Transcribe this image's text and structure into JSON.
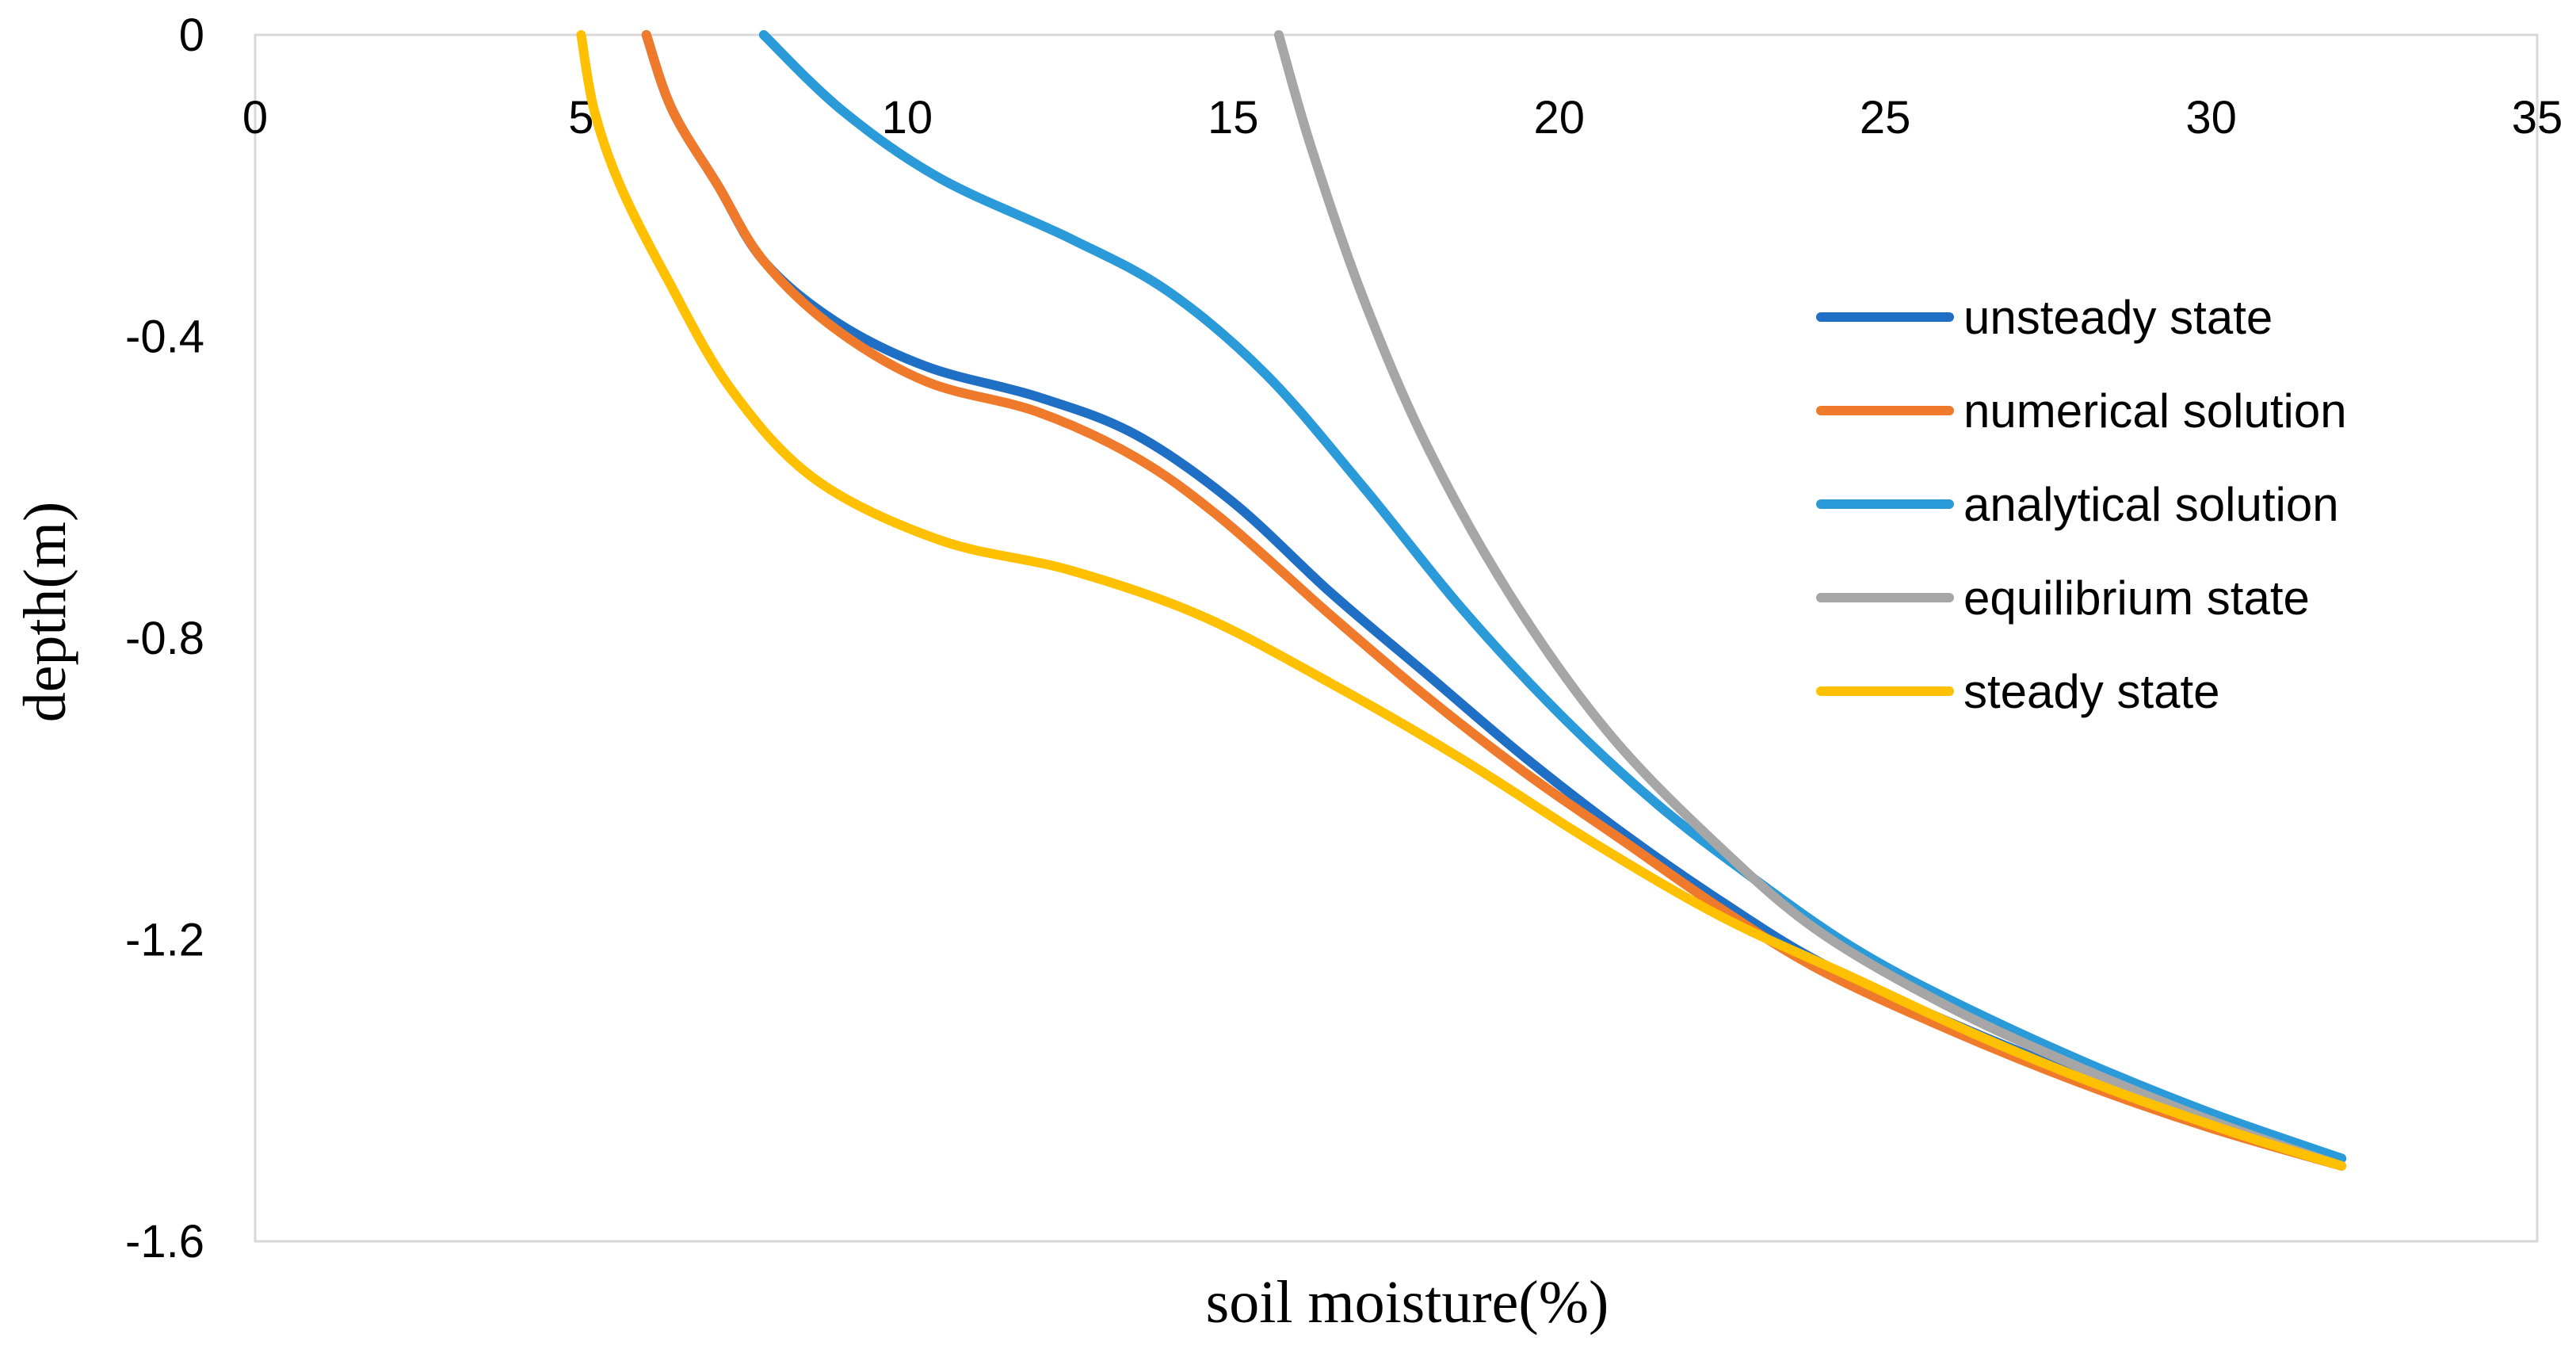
{
  "chart_data": {
    "type": "line",
    "xlabel": "soil moisture(%)",
    "ylabel": "depth(m)",
    "xlim": [
      0,
      35
    ],
    "ylim": [
      -1.6,
      0
    ],
    "x_ticks": [
      "0",
      "5",
      "10",
      "15",
      "20",
      "25",
      "30",
      "35"
    ],
    "x_tick_values": [
      0,
      5,
      10,
      15,
      20,
      25,
      30,
      35
    ],
    "y_ticks": [
      "0",
      "-0.4",
      "-0.8",
      "-1.2",
      "-1.6"
    ],
    "y_tick_values": [
      0,
      -0.4,
      -0.8,
      -1.2,
      -1.6
    ],
    "legend_position": "right",
    "grid": false,
    "series": [
      {
        "name": "unsteady state",
        "color": "#1F6FC5",
        "points": [
          [
            6.0,
            0
          ],
          [
            6.4,
            -0.1
          ],
          [
            7.1,
            -0.2
          ],
          [
            7.8,
            -0.3
          ],
          [
            8.9,
            -0.38
          ],
          [
            10.3,
            -0.44
          ],
          [
            12.0,
            -0.48
          ],
          [
            13.5,
            -0.53
          ],
          [
            15.0,
            -0.62
          ],
          [
            16.5,
            -0.74
          ],
          [
            18.0,
            -0.85
          ],
          [
            19.5,
            -0.96
          ],
          [
            21.0,
            -1.06
          ],
          [
            22.5,
            -1.15
          ],
          [
            24.0,
            -1.23
          ],
          [
            26.0,
            -1.31
          ],
          [
            28.0,
            -1.38
          ],
          [
            30.0,
            -1.44
          ],
          [
            32.0,
            -1.49
          ]
        ]
      },
      {
        "name": "numerical solution",
        "color": "#F07A2B",
        "points": [
          [
            6.0,
            0
          ],
          [
            6.4,
            -0.1
          ],
          [
            7.1,
            -0.2
          ],
          [
            7.8,
            -0.3
          ],
          [
            8.9,
            -0.39
          ],
          [
            10.3,
            -0.46
          ],
          [
            12.0,
            -0.5
          ],
          [
            13.5,
            -0.56
          ],
          [
            14.8,
            -0.64
          ],
          [
            16.5,
            -0.77
          ],
          [
            18.0,
            -0.88
          ],
          [
            19.5,
            -0.98
          ],
          [
            21.0,
            -1.07
          ],
          [
            22.5,
            -1.16
          ],
          [
            24.0,
            -1.24
          ],
          [
            26.0,
            -1.32
          ],
          [
            28.0,
            -1.39
          ],
          [
            30.0,
            -1.45
          ],
          [
            32.0,
            -1.5
          ]
        ]
      },
      {
        "name": "analytical solution",
        "color": "#2A9AD8",
        "points": [
          [
            7.8,
            0
          ],
          [
            9.0,
            -0.1
          ],
          [
            10.5,
            -0.19
          ],
          [
            12.5,
            -0.27
          ],
          [
            14.0,
            -0.34
          ],
          [
            15.5,
            -0.45
          ],
          [
            17.0,
            -0.6
          ],
          [
            18.5,
            -0.76
          ],
          [
            20.0,
            -0.9
          ],
          [
            21.5,
            -1.02
          ],
          [
            23.0,
            -1.12
          ],
          [
            24.5,
            -1.21
          ],
          [
            26.0,
            -1.28
          ],
          [
            28.0,
            -1.36
          ],
          [
            30.0,
            -1.43
          ],
          [
            32.0,
            -1.49
          ]
        ]
      },
      {
        "name": "equilibrium state",
        "color": "#A6A6A6",
        "points": [
          [
            15.7,
            0
          ],
          [
            16.2,
            -0.15
          ],
          [
            17.0,
            -0.35
          ],
          [
            18.0,
            -0.55
          ],
          [
            19.3,
            -0.75
          ],
          [
            20.8,
            -0.93
          ],
          [
            22.5,
            -1.08
          ],
          [
            24.0,
            -1.19
          ],
          [
            26.0,
            -1.29
          ],
          [
            28.0,
            -1.37
          ],
          [
            30.0,
            -1.44
          ],
          [
            32.0,
            -1.5
          ]
        ]
      },
      {
        "name": "steady state",
        "color": "#FFC000",
        "points": [
          [
            5.0,
            0
          ],
          [
            5.2,
            -0.1
          ],
          [
            5.6,
            -0.2
          ],
          [
            6.3,
            -0.32
          ],
          [
            7.3,
            -0.47
          ],
          [
            8.6,
            -0.59
          ],
          [
            10.5,
            -0.67
          ],
          [
            12.5,
            -0.71
          ],
          [
            14.5,
            -0.77
          ],
          [
            16.5,
            -0.86
          ],
          [
            18.5,
            -0.96
          ],
          [
            20.5,
            -1.07
          ],
          [
            22.5,
            -1.17
          ],
          [
            24.5,
            -1.25
          ],
          [
            26.5,
            -1.33
          ],
          [
            28.5,
            -1.4
          ],
          [
            30.5,
            -1.46
          ],
          [
            32.0,
            -1.5
          ]
        ]
      }
    ]
  }
}
